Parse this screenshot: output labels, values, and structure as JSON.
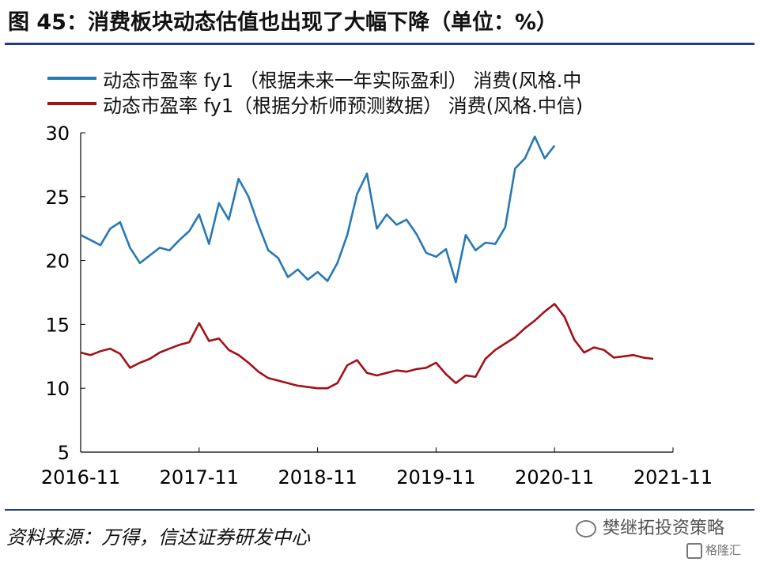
{
  "title": "图 45：消费板块动态估值也出现了大幅下降（单位：%）",
  "source": "资料来源：万得，信达证券研发中心",
  "watermark": "樊继拓投资策略",
  "logo_text": "格隆汇",
  "colors": {
    "rule": "#1f3d7a",
    "series1": "#2878b5",
    "series2": "#a50f15"
  },
  "chart_data": {
    "type": "line",
    "title": "图 45：消费板块动态估值也出现了大幅下降（单位：%）",
    "x_ticks": [
      "2016-11",
      "2017-11",
      "2018-11",
      "2019-11",
      "2020-11",
      "2021-11"
    ],
    "xlim": [
      "2016-11",
      "2021-11"
    ],
    "y_ticks": [
      5,
      10,
      15,
      20,
      25,
      30
    ],
    "ylim": [
      5,
      30
    ],
    "grid": false,
    "legend_position": "top-left",
    "series": [
      {
        "name": "动态市盈率 fy1 （根据未来一年实际盈利） 消费(风格.中",
        "color": "#2878b5",
        "points": [
          [
            "2016-11",
            22.0
          ],
          [
            "2016-12",
            21.6
          ],
          [
            "2017-01",
            21.2
          ],
          [
            "2017-02",
            22.5
          ],
          [
            "2017-03",
            23.0
          ],
          [
            "2017-04",
            21.0
          ],
          [
            "2017-05",
            19.8
          ],
          [
            "2017-06",
            20.4
          ],
          [
            "2017-07",
            21.0
          ],
          [
            "2017-08",
            20.8
          ],
          [
            "2017-09",
            21.6
          ],
          [
            "2017-10",
            22.3
          ],
          [
            "2017-11",
            23.6
          ],
          [
            "2017-12",
            21.3
          ],
          [
            "2018-01",
            24.5
          ],
          [
            "2018-02",
            23.2
          ],
          [
            "2018-03",
            26.4
          ],
          [
            "2018-04",
            25.0
          ],
          [
            "2018-05",
            22.8
          ],
          [
            "2018-06",
            20.8
          ],
          [
            "2018-07",
            20.2
          ],
          [
            "2018-08",
            18.7
          ],
          [
            "2018-09",
            19.3
          ],
          [
            "2018-10",
            18.5
          ],
          [
            "2018-11",
            19.1
          ],
          [
            "2018-12",
            18.4
          ],
          [
            "2019-01",
            19.8
          ],
          [
            "2019-02",
            22.0
          ],
          [
            "2019-03",
            25.2
          ],
          [
            "2019-04",
            26.8
          ],
          [
            "2019-05",
            22.5
          ],
          [
            "2019-06",
            23.6
          ],
          [
            "2019-07",
            22.8
          ],
          [
            "2019-08",
            23.2
          ],
          [
            "2019-09",
            22.1
          ],
          [
            "2019-10",
            20.6
          ],
          [
            "2019-11",
            20.3
          ],
          [
            "2019-12",
            20.9
          ],
          [
            "2020-01",
            18.3
          ],
          [
            "2020-02",
            22.0
          ],
          [
            "2020-03",
            20.8
          ],
          [
            "2020-04",
            21.4
          ],
          [
            "2020-05",
            21.3
          ],
          [
            "2020-06",
            22.6
          ],
          [
            "2020-07",
            27.2
          ],
          [
            "2020-08",
            28.0
          ],
          [
            "2020-09",
            29.7
          ],
          [
            "2020-10",
            28.0
          ],
          [
            "2020-11",
            29.0
          ]
        ]
      },
      {
        "name": "动态市盈率 fy1（根据分析师预测数据） 消费(风格.中信)",
        "color": "#a50f15",
        "points": [
          [
            "2016-11",
            12.8
          ],
          [
            "2016-12",
            12.6
          ],
          [
            "2017-01",
            12.9
          ],
          [
            "2017-02",
            13.1
          ],
          [
            "2017-03",
            12.7
          ],
          [
            "2017-04",
            11.6
          ],
          [
            "2017-05",
            12.0
          ],
          [
            "2017-06",
            12.3
          ],
          [
            "2017-07",
            12.8
          ],
          [
            "2017-08",
            13.1
          ],
          [
            "2017-09",
            13.4
          ],
          [
            "2017-10",
            13.6
          ],
          [
            "2017-11",
            15.1
          ],
          [
            "2017-12",
            13.7
          ],
          [
            "2018-01",
            13.9
          ],
          [
            "2018-02",
            13.0
          ],
          [
            "2018-03",
            12.6
          ],
          [
            "2018-04",
            12.0
          ],
          [
            "2018-05",
            11.3
          ],
          [
            "2018-06",
            10.8
          ],
          [
            "2018-07",
            10.6
          ],
          [
            "2018-08",
            10.4
          ],
          [
            "2018-09",
            10.2
          ],
          [
            "2018-10",
            10.1
          ],
          [
            "2018-11",
            10.0
          ],
          [
            "2018-12",
            10.0
          ],
          [
            "2019-01",
            10.4
          ],
          [
            "2019-02",
            11.8
          ],
          [
            "2019-03",
            12.2
          ],
          [
            "2019-04",
            11.2
          ],
          [
            "2019-05",
            11.0
          ],
          [
            "2019-06",
            11.2
          ],
          [
            "2019-07",
            11.4
          ],
          [
            "2019-08",
            11.3
          ],
          [
            "2019-09",
            11.5
          ],
          [
            "2019-10",
            11.6
          ],
          [
            "2019-11",
            12.0
          ],
          [
            "2019-12",
            11.1
          ],
          [
            "2020-01",
            10.4
          ],
          [
            "2020-02",
            11.0
          ],
          [
            "2020-03",
            10.9
          ],
          [
            "2020-04",
            12.3
          ],
          [
            "2020-05",
            13.0
          ],
          [
            "2020-06",
            13.5
          ],
          [
            "2020-07",
            14.0
          ],
          [
            "2020-08",
            14.7
          ],
          [
            "2020-09",
            15.3
          ],
          [
            "2020-10",
            16.0
          ],
          [
            "2020-11",
            16.6
          ],
          [
            "2020-12",
            15.6
          ],
          [
            "2021-01",
            13.8
          ],
          [
            "2021-02",
            12.8
          ],
          [
            "2021-03",
            13.2
          ],
          [
            "2021-04",
            13.0
          ],
          [
            "2021-05",
            12.4
          ],
          [
            "2021-06",
            12.5
          ],
          [
            "2021-07",
            12.6
          ],
          [
            "2021-08",
            12.4
          ],
          [
            "2021-09",
            12.3
          ]
        ]
      }
    ]
  }
}
